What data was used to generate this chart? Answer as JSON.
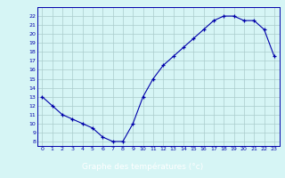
{
  "hours": [
    0,
    1,
    2,
    3,
    4,
    5,
    6,
    7,
    8,
    9,
    10,
    11,
    12,
    13,
    14,
    15,
    16,
    17,
    18,
    19,
    20,
    21,
    22,
    23
  ],
  "temps": [
    13,
    12,
    11,
    10.5,
    10,
    9.5,
    8.5,
    8,
    8,
    10,
    13,
    15,
    16.5,
    17.5,
    18.5,
    19.5,
    20.5,
    21.5,
    22,
    22,
    21.5,
    21.5,
    20.5,
    17.5
  ],
  "xlabel": "Graphe des températures (°c)",
  "yticks": [
    8,
    9,
    10,
    11,
    12,
    13,
    14,
    15,
    16,
    17,
    18,
    19,
    20,
    21,
    22
  ],
  "xticks": [
    0,
    1,
    2,
    3,
    4,
    5,
    6,
    7,
    8,
    9,
    10,
    11,
    12,
    13,
    14,
    15,
    16,
    17,
    18,
    19,
    20,
    21,
    22,
    23
  ],
  "line_color": "#0000aa",
  "marker": "+",
  "bg_color": "#d6f5f5",
  "grid_color": "#aacccc",
  "xlabel_color": "white",
  "xlabel_bg": "#0000cc"
}
